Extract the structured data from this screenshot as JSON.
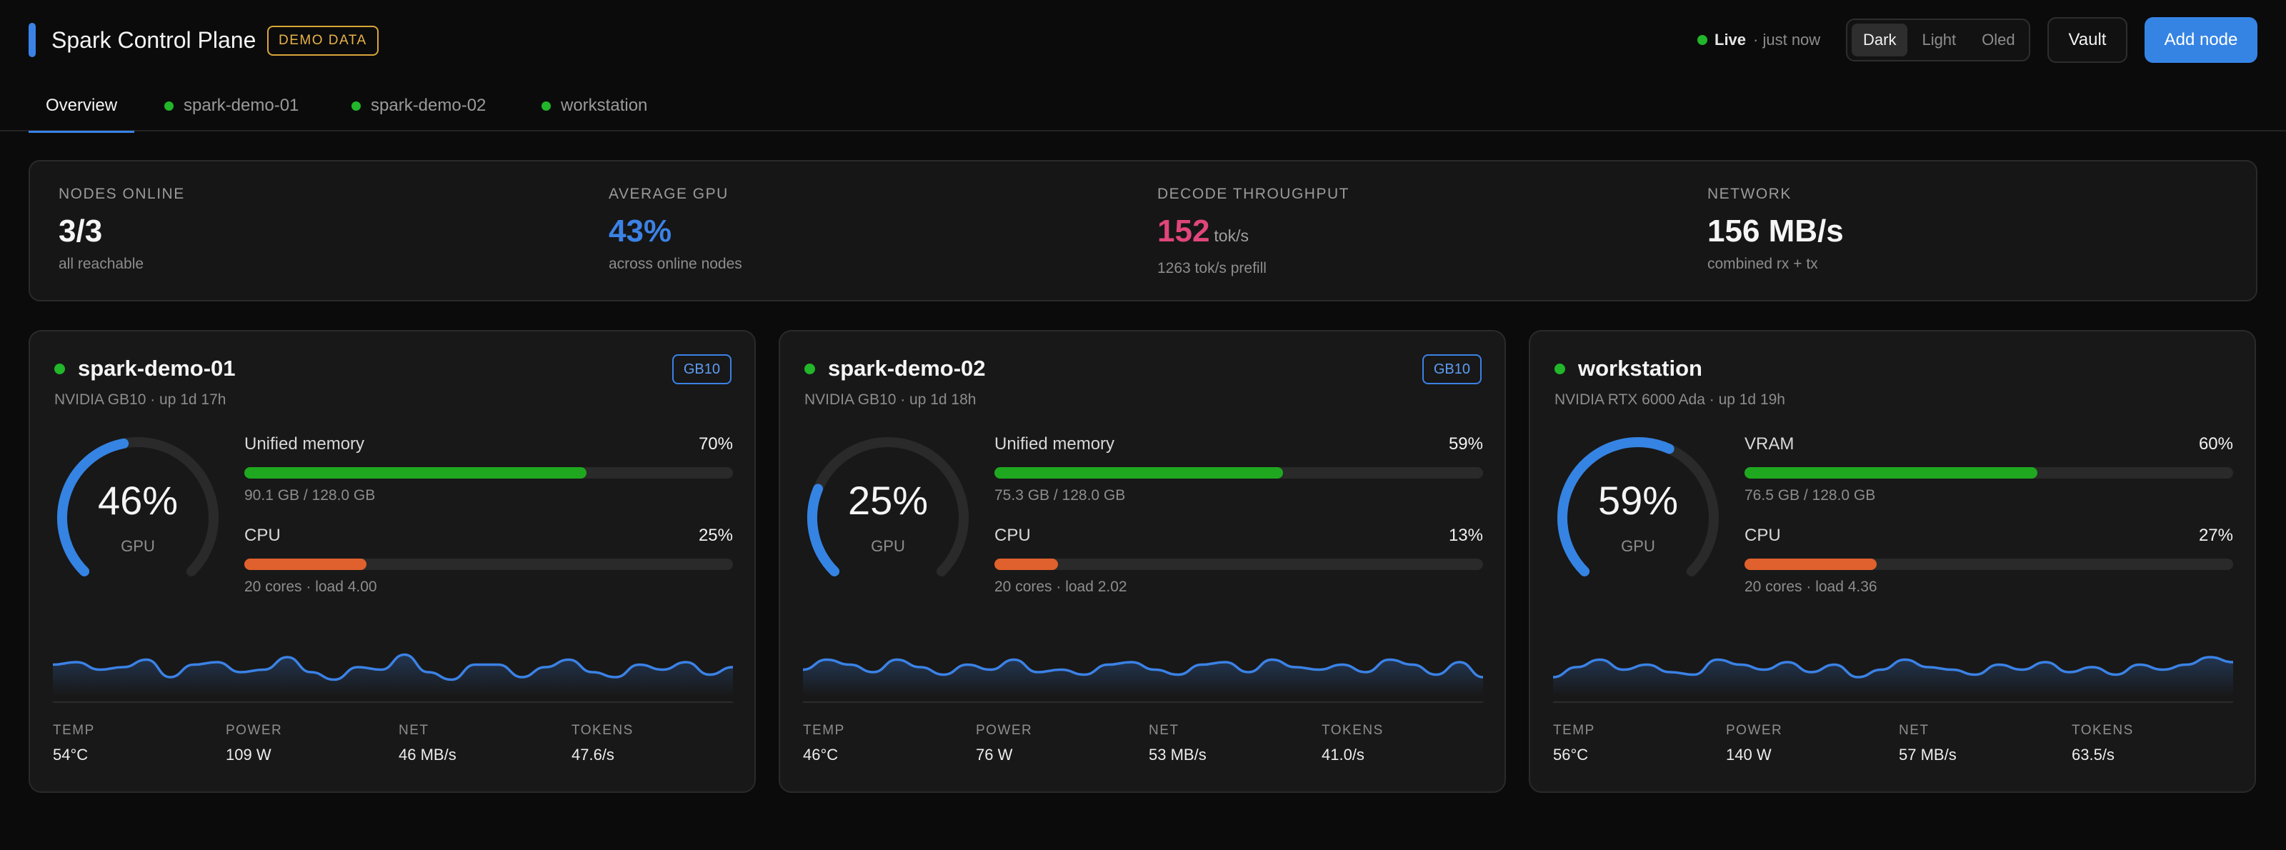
{
  "app": {
    "title": "Spark Control Plane",
    "badge": "DEMO DATA"
  },
  "status": {
    "live_label": "Live",
    "live_time": "· just now",
    "live_color": "#22b62a"
  },
  "theme": {
    "options": [
      "Dark",
      "Light",
      "Oled"
    ],
    "selected": "Dark"
  },
  "actions": {
    "vault": "Vault",
    "add_node": "Add node"
  },
  "tabs": [
    {
      "label": "Overview",
      "active": true
    },
    {
      "label": "spark-demo-01",
      "status": "online"
    },
    {
      "label": "spark-demo-02",
      "status": "online"
    },
    {
      "label": "workstation",
      "status": "online"
    }
  ],
  "summary": {
    "nodes": {
      "label": "NODES ONLINE",
      "value": "3/3",
      "sub": "all reachable"
    },
    "gpu": {
      "label": "AVERAGE GPU",
      "value": "43%",
      "sub": "across online nodes",
      "color": "#3b82e6"
    },
    "decode": {
      "label": "DECODE THROUGHPUT",
      "value": "152",
      "unit": "tok/s",
      "sub": "1263 tok/s prefill",
      "color": "#e0457b"
    },
    "network": {
      "label": "NETWORK",
      "value": "156 MB/s",
      "sub": "combined rx + tx"
    }
  },
  "colors": {
    "accent": "#3b82e6",
    "memory_bar": "#1fa81f",
    "cpu_bar": "#e0612d",
    "online": "#22b62a"
  },
  "footer_labels": {
    "temp": "TEMP",
    "power": "POWER",
    "net": "NET",
    "tokens": "TOKENS"
  },
  "nodes": [
    {
      "name": "spark-demo-01",
      "sub": "NVIDIA GB10 · up 1d 17h",
      "badge": "GB10",
      "gpu": {
        "value": "46%",
        "label": "GPU",
        "fraction": 0.46
      },
      "memory": {
        "label": "Unified memory",
        "pct": "70%",
        "fraction": 0.7,
        "sub": "90.1 GB / 128.0 GB"
      },
      "cpu": {
        "label": "CPU",
        "pct": "25%",
        "fraction": 0.25,
        "sub": "20 cores · load 4.00"
      },
      "spark": [
        0.45,
        0.5,
        0.35,
        0.4,
        0.55,
        0.2,
        0.45,
        0.5,
        0.3,
        0.35,
        0.6,
        0.3,
        0.15,
        0.4,
        0.35,
        0.65,
        0.3,
        0.15,
        0.45,
        0.45,
        0.2,
        0.4,
        0.55,
        0.3,
        0.2,
        0.45,
        0.35,
        0.5,
        0.25,
        0.4
      ],
      "temp": "54°C",
      "power": "109 W",
      "net": "46 MB/s",
      "tokens": "47.6/s"
    },
    {
      "name": "spark-demo-02",
      "sub": "NVIDIA GB10 · up 1d 18h",
      "badge": "GB10",
      "gpu": {
        "value": "25%",
        "label": "GPU",
        "fraction": 0.25
      },
      "memory": {
        "label": "Unified memory",
        "pct": "59%",
        "fraction": 0.59,
        "sub": "75.3 GB / 128.0 GB"
      },
      "cpu": {
        "label": "CPU",
        "pct": "13%",
        "fraction": 0.13,
        "sub": "20 cores · load 2.02"
      },
      "spark": [
        0.35,
        0.55,
        0.45,
        0.3,
        0.55,
        0.4,
        0.25,
        0.45,
        0.35,
        0.55,
        0.3,
        0.35,
        0.25,
        0.45,
        0.5,
        0.35,
        0.25,
        0.45,
        0.5,
        0.3,
        0.55,
        0.4,
        0.35,
        0.45,
        0.3,
        0.55,
        0.45,
        0.25,
        0.5,
        0.2
      ],
      "temp": "46°C",
      "power": "76 W",
      "net": "53 MB/s",
      "tokens": "41.0/s"
    },
    {
      "name": "workstation",
      "sub": "NVIDIA RTX 6000 Ada · up 1d 19h",
      "badge": "",
      "gpu": {
        "value": "59%",
        "label": "GPU",
        "fraction": 0.59
      },
      "memory": {
        "label": "VRAM",
        "pct": "60%",
        "fraction": 0.6,
        "sub": "76.5 GB / 128.0 GB"
      },
      "cpu": {
        "label": "CPU",
        "pct": "27%",
        "fraction": 0.27,
        "sub": "20 cores · load 4.36"
      },
      "spark": [
        0.2,
        0.4,
        0.55,
        0.35,
        0.45,
        0.3,
        0.25,
        0.55,
        0.45,
        0.35,
        0.5,
        0.3,
        0.45,
        0.2,
        0.35,
        0.55,
        0.4,
        0.35,
        0.25,
        0.45,
        0.35,
        0.5,
        0.3,
        0.4,
        0.25,
        0.45,
        0.35,
        0.45,
        0.6,
        0.5
      ],
      "temp": "56°C",
      "power": "140 W",
      "net": "57 MB/s",
      "tokens": "63.5/s"
    }
  ]
}
